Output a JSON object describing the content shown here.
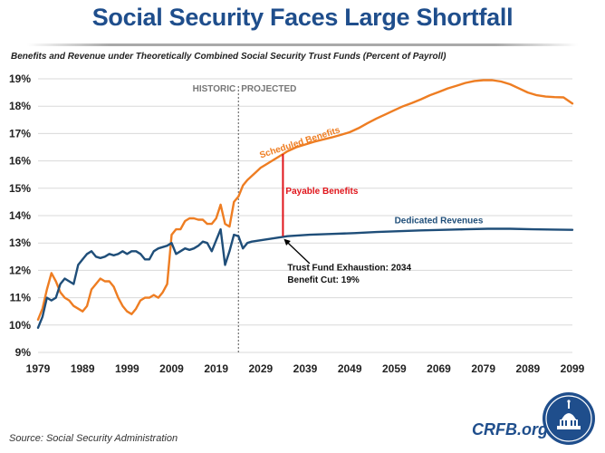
{
  "header": {
    "title": "Social Security Faces Large Shortfall",
    "subtitle": "Benefits and Revenue under Theoretically Combined Social Security Trust Funds (Percent of Payroll)"
  },
  "footer": {
    "source": "Source: Social Security Administration",
    "brand": "CRFB.org"
  },
  "colors": {
    "benefits": "#ee7d22",
    "revenues": "#1f4e79",
    "gap": "#e0151b",
    "title": "#1f4e8c"
  },
  "chart_data": {
    "type": "line",
    "title": "Benefits and Revenue under Theoretically Combined Social Security Trust Funds (Percent of Payroll)",
    "xlabel": "",
    "ylabel": "",
    "xlim": [
      1979,
      2099
    ],
    "ylim": [
      9,
      19
    ],
    "x_ticks": [
      "1979",
      "1989",
      "1999",
      "2009",
      "2019",
      "2029",
      "2039",
      "2049",
      "2059",
      "2069",
      "2079",
      "2089",
      "2099"
    ],
    "y_ticks": [
      "9%",
      "10%",
      "11%",
      "12%",
      "13%",
      "14%",
      "15%",
      "16%",
      "17%",
      "18%",
      "19%"
    ],
    "y_tick_values": [
      9,
      10,
      11,
      12,
      13,
      14,
      15,
      16,
      17,
      18,
      19
    ],
    "divider_year": 2024,
    "regions": {
      "historic": "HISTORIC",
      "projected": "PROJECTED"
    },
    "series": [
      {
        "name": "Scheduled Benefits",
        "x": [
          1979,
          1980,
          1981,
          1982,
          1983,
          1984,
          1985,
          1986,
          1987,
          1988,
          1989,
          1990,
          1991,
          1992,
          1993,
          1994,
          1995,
          1996,
          1997,
          1998,
          1999,
          2000,
          2001,
          2002,
          2003,
          2004,
          2005,
          2006,
          2007,
          2008,
          2009,
          2010,
          2011,
          2012,
          2013,
          2014,
          2015,
          2016,
          2017,
          2018,
          2019,
          2020,
          2021,
          2022,
          2023,
          2024,
          2025,
          2026,
          2027,
          2028,
          2029,
          2030,
          2031,
          2032,
          2033,
          2034,
          2035,
          2037,
          2039,
          2041,
          2043,
          2045,
          2047,
          2049,
          2051,
          2053,
          2055,
          2057,
          2059,
          2061,
          2063,
          2065,
          2067,
          2069,
          2071,
          2073,
          2075,
          2077,
          2079,
          2081,
          2083,
          2085,
          2087,
          2089,
          2091,
          2093,
          2095,
          2097,
          2099
        ],
        "values": [
          10.2,
          10.6,
          11.3,
          11.9,
          11.6,
          11.2,
          11.0,
          10.9,
          10.7,
          10.6,
          10.5,
          10.7,
          11.3,
          11.5,
          11.7,
          11.6,
          11.6,
          11.4,
          11.0,
          10.7,
          10.5,
          10.4,
          10.6,
          10.9,
          11.0,
          11.0,
          11.1,
          11.0,
          11.2,
          11.5,
          13.3,
          13.5,
          13.5,
          13.8,
          13.9,
          13.9,
          13.85,
          13.85,
          13.7,
          13.7,
          13.9,
          14.4,
          13.7,
          13.6,
          14.5,
          14.7,
          15.1,
          15.3,
          15.45,
          15.6,
          15.75,
          15.85,
          15.95,
          16.05,
          16.15,
          16.25,
          16.35,
          16.5,
          16.6,
          16.7,
          16.78,
          16.86,
          16.95,
          17.05,
          17.2,
          17.38,
          17.55,
          17.7,
          17.85,
          18.0,
          18.12,
          18.25,
          18.4,
          18.52,
          18.65,
          18.75,
          18.85,
          18.92,
          18.95,
          18.95,
          18.9,
          18.8,
          18.65,
          18.5,
          18.4,
          18.35,
          18.33,
          18.32,
          18.1
        ]
      },
      {
        "name": "Dedicated Revenues",
        "x": [
          1979,
          1980,
          1981,
          1982,
          1983,
          1984,
          1985,
          1986,
          1987,
          1988,
          1989,
          1990,
          1991,
          1992,
          1993,
          1994,
          1995,
          1996,
          1997,
          1998,
          1999,
          2000,
          2001,
          2002,
          2003,
          2004,
          2005,
          2006,
          2007,
          2008,
          2009,
          2010,
          2011,
          2012,
          2013,
          2014,
          2015,
          2016,
          2017,
          2018,
          2019,
          2020,
          2021,
          2022,
          2023,
          2024,
          2025,
          2026,
          2027,
          2029,
          2031,
          2033,
          2035,
          2040,
          2045,
          2050,
          2055,
          2060,
          2065,
          2070,
          2075,
          2080,
          2085,
          2090,
          2095,
          2099
        ],
        "values": [
          9.9,
          10.3,
          11.0,
          10.9,
          11.0,
          11.5,
          11.7,
          11.6,
          11.5,
          12.2,
          12.4,
          12.6,
          12.7,
          12.5,
          12.45,
          12.5,
          12.6,
          12.55,
          12.6,
          12.7,
          12.6,
          12.7,
          12.7,
          12.6,
          12.4,
          12.4,
          12.7,
          12.8,
          12.85,
          12.9,
          13.0,
          12.6,
          12.7,
          12.8,
          12.75,
          12.8,
          12.9,
          13.05,
          13.0,
          12.7,
          13.1,
          13.5,
          12.2,
          12.7,
          13.3,
          13.25,
          12.8,
          13.0,
          13.05,
          13.1,
          13.15,
          13.2,
          13.25,
          13.3,
          13.33,
          13.36,
          13.4,
          13.43,
          13.46,
          13.48,
          13.5,
          13.52,
          13.52,
          13.5,
          13.49,
          13.48
        ]
      }
    ],
    "annotations": {
      "benefits_label": "Scheduled Benefits",
      "revenues_label": "Dedicated Revenues",
      "gap_label": "Payable Benefits",
      "exhaustion_line1": "Trust Fund Exhaustion: 2034",
      "exhaustion_line2": "Benefit Cut: 19%",
      "exhaustion_year": 2034,
      "exhaustion_benefit_value": 16.25,
      "exhaustion_revenue_value": 13.25
    }
  }
}
